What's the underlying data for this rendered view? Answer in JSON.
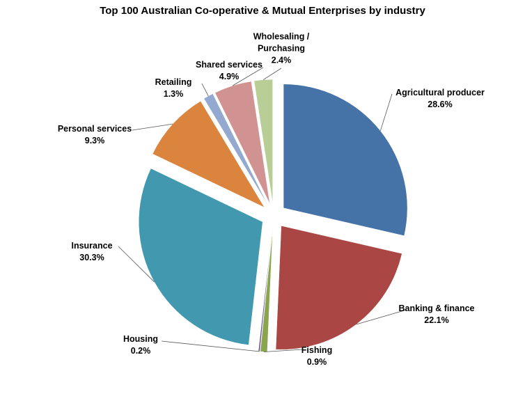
{
  "chart_data": {
    "type": "pie",
    "title": "Top 100 Australian Co-operative & Mutual Enterprises by industry",
    "categories": [
      "Agricultural producer",
      "Banking & finance",
      "Fishing",
      "Housing",
      "Insurance",
      "Personal services",
      "Retailing",
      "Shared services",
      "Wholesaling / Purchasing"
    ],
    "values": [
      28.6,
      22.1,
      0.9,
      0.2,
      30.3,
      9.3,
      1.3,
      4.9,
      2.4
    ],
    "value_labels": [
      "28.6%",
      "22.1%",
      "0.9%",
      "0.2%",
      "30.3%",
      "9.3%",
      "1.3%",
      "4.9%",
      "2.4%"
    ],
    "colors": [
      "#4572a7",
      "#aa4643",
      "#89a54e",
      "#71588f",
      "#4198af",
      "#db843d",
      "#93a9cf",
      "#d19392",
      "#b9cd96"
    ]
  }
}
